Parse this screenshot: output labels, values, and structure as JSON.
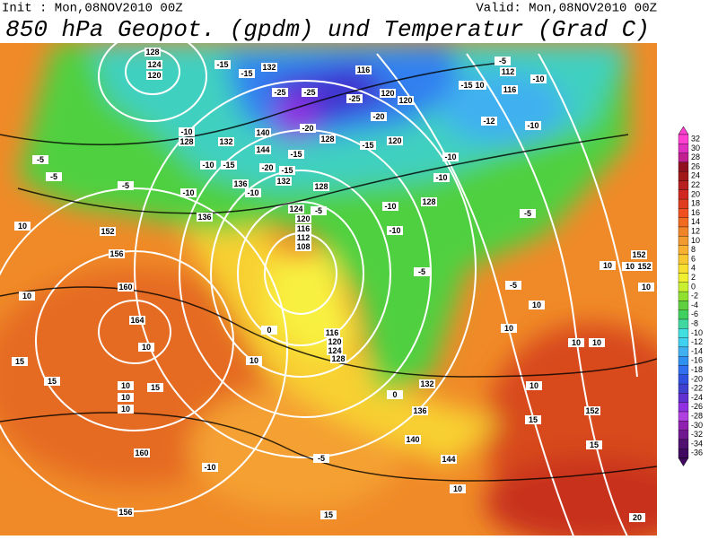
{
  "header": {
    "init": "Init : Mon,08NOV2010 00Z",
    "valid": "Valid: Mon,08NOV2010 00Z",
    "title": "850 hPa Geopot. (gpdm) und Temperatur (Grad C)"
  },
  "legend": {
    "labels": [
      32,
      30,
      28,
      26,
      24,
      22,
      20,
      18,
      16,
      14,
      12,
      10,
      8,
      6,
      4,
      2,
      0,
      -2,
      -4,
      -6,
      -8,
      -10,
      -12,
      -14,
      -16,
      -18,
      -20,
      -22,
      -24,
      -26,
      -28,
      -30,
      -32,
      -34,
      -36
    ],
    "colors": [
      "#ff40d0",
      "#e030c0",
      "#c02090",
      "#901020",
      "#a01818",
      "#b82020",
      "#d02820",
      "#e03c20",
      "#f05020",
      "#f06a20",
      "#f08428",
      "#f09a30",
      "#f8b030",
      "#f8c830",
      "#f8e030",
      "#f0f030",
      "#c8f030",
      "#90e030",
      "#60d040",
      "#40d060",
      "#40d8a0",
      "#40e0e0",
      "#40d0f0",
      "#40b0f0",
      "#3090f0",
      "#3070f0",
      "#3050e0",
      "#4040d0",
      "#6030d0",
      "#9030e0",
      "#b040e0",
      "#9020b0",
      "#701890",
      "#501070",
      "#400860"
    ]
  },
  "contour_labels": [
    "128",
    "124",
    "120",
    "132",
    "-15",
    "-15",
    "116",
    "-5",
    "112",
    "-10",
    "116",
    "-10",
    "-15",
    "-25",
    "-25",
    "-25",
    "120",
    "120",
    "-20",
    "-12",
    "-10",
    "-10",
    "128",
    "132",
    "140",
    "-20",
    "128",
    "-15",
    "120",
    "-5",
    "-5",
    "-10",
    "-15",
    "144",
    "-15",
    "-20",
    "-15",
    "132",
    "136",
    "-10",
    "128",
    "-5",
    "-10",
    "136",
    "124",
    "120",
    "-5",
    "116",
    "112",
    "108",
    "-10",
    "-10",
    "128",
    "-10",
    "-10",
    "-5",
    "152",
    "156",
    "10",
    "160",
    "164",
    "10",
    "10",
    "15",
    "15",
    "10",
    "15",
    "10",
    "10",
    "10",
    "0",
    "116",
    "120",
    "124",
    "128",
    "-5",
    "-5",
    "10",
    "10",
    "10",
    "10",
    "10",
    "10",
    "152",
    "152",
    "10",
    "132",
    "136",
    "140",
    "144",
    "152",
    "15",
    "15",
    "10",
    "-10",
    "-5",
    "160",
    "156",
    "15",
    "20",
    "0",
    "10"
  ]
}
